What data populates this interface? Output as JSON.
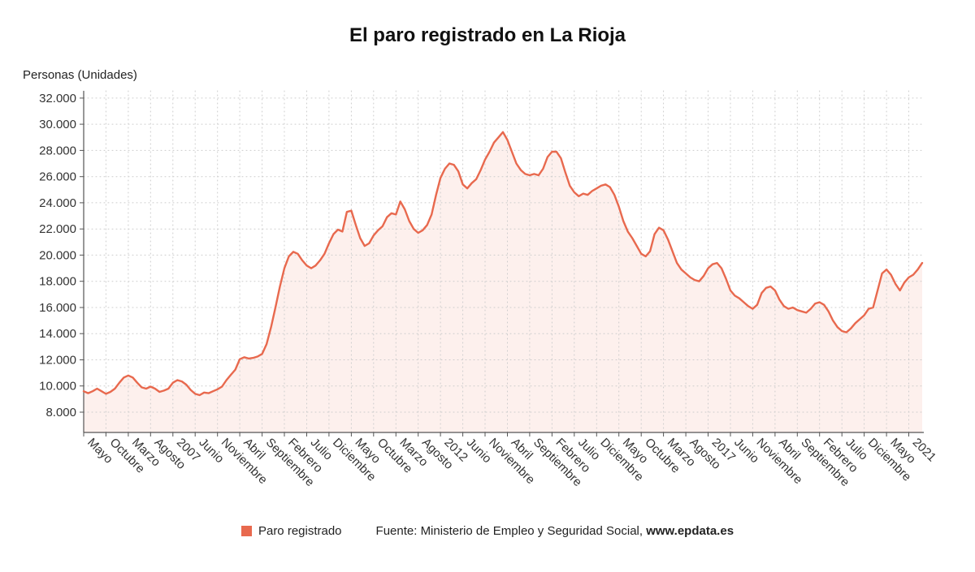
{
  "title": "El paro registrado en La Rioja",
  "y_axis_title": "Personas (Unidades)",
  "legend": {
    "series_label": "Paro registrado",
    "source_prefix": "Fuente: Ministerio de Empleo y Seguridad Social, ",
    "source_link": "www.epdata.es"
  },
  "colors": {
    "line": "#e8694e",
    "fill": "rgba(232,105,78,0.10)",
    "grid": "#cccccc",
    "axis": "#555555",
    "text": "#333333"
  },
  "chart_data": {
    "type": "area",
    "series_name": "Paro registrado",
    "unit": "personas",
    "frequency": "monthly",
    "period": "Mayo 2005 - 2021",
    "grid": "dotted",
    "legend_position": "bottom",
    "x_tick_every_n_points": 5,
    "x_tick_labels": [
      "Mayo",
      "Octubre",
      "Marzo",
      "Agosto",
      "2007",
      "Junio",
      "Noviembre",
      "Abril",
      "Septiembre",
      "Febrero",
      "Julio",
      "Diciembre",
      "Mayo",
      "Octubre",
      "Marzo",
      "Agosto",
      "2012",
      "Junio",
      "Noviembre",
      "Abril",
      "Septiembre",
      "Febrero",
      "Julio",
      "Diciembre",
      "Mayo",
      "Octubre",
      "Marzo",
      "Agosto",
      "2017",
      "Junio",
      "Noviembre",
      "Abril",
      "Septiembre",
      "Febrero",
      "Julio",
      "Diciembre",
      "Mayo",
      "2021"
    ],
    "y_ticks": [
      8000,
      10000,
      12000,
      14000,
      16000,
      18000,
      20000,
      22000,
      24000,
      26000,
      28000,
      30000,
      32000
    ],
    "y_tick_labels": [
      "8.000",
      "10.000",
      "12.000",
      "14.000",
      "16.000",
      "18.000",
      "20.000",
      "22.000",
      "24.000",
      "26.000",
      "28.000",
      "30.000",
      "32.000"
    ],
    "ylim": [
      6450,
      32550
    ],
    "values": [
      9600,
      9450,
      9600,
      9800,
      9600,
      9400,
      9550,
      9800,
      10250,
      10650,
      10800,
      10650,
      10250,
      9900,
      9800,
      9950,
      9800,
      9550,
      9650,
      9800,
      10250,
      10450,
      10350,
      10100,
      9700,
      9400,
      9300,
      9500,
      9450,
      9600,
      9750,
      9950,
      10450,
      10850,
      11250,
      12050,
      12200,
      12100,
      12150,
      12250,
      12450,
      13200,
      14500,
      16000,
      17600,
      19000,
      19900,
      20250,
      20100,
      19600,
      19200,
      19000,
      19200,
      19600,
      20100,
      20900,
      21600,
      21950,
      21800,
      23300,
      23400,
      22300,
      21300,
      20700,
      20900,
      21500,
      21900,
      22200,
      22900,
      23200,
      23100,
      24100,
      23500,
      22600,
      22000,
      21700,
      21900,
      22300,
      23100,
      24600,
      25900,
      26600,
      27000,
      26900,
      26400,
      25400,
      25100,
      25500,
      25800,
      26500,
      27300,
      27900,
      28600,
      29000,
      29400,
      28800,
      27900,
      27000,
      26500,
      26200,
      26100,
      26200,
      26100,
      26600,
      27500,
      27900,
      27900,
      27400,
      26300,
      25300,
      24800,
      24500,
      24700,
      24600,
      24900,
      25100,
      25300,
      25400,
      25200,
      24600,
      23700,
      22600,
      21800,
      21300,
      20700,
      20100,
      19900,
      20300,
      21600,
      22100,
      21900,
      21200,
      20300,
      19400,
      18900,
      18600,
      18300,
      18100,
      18000,
      18400,
      19000,
      19300,
      19400,
      19000,
      18200,
      17300,
      16900,
      16700,
      16400,
      16100,
      15900,
      16200,
      17100,
      17500,
      17600,
      17300,
      16600,
      16100,
      15900,
      16000,
      15800,
      15700,
      15600,
      15900,
      16300,
      16400,
      16200,
      15700,
      15000,
      14500,
      14200,
      14100,
      14400,
      14800,
      15100,
      15400,
      15900,
      16000,
      17300,
      18600,
      18900,
      18500,
      17800,
      17300,
      17900,
      18300,
      18500,
      18900,
      19400
    ]
  }
}
